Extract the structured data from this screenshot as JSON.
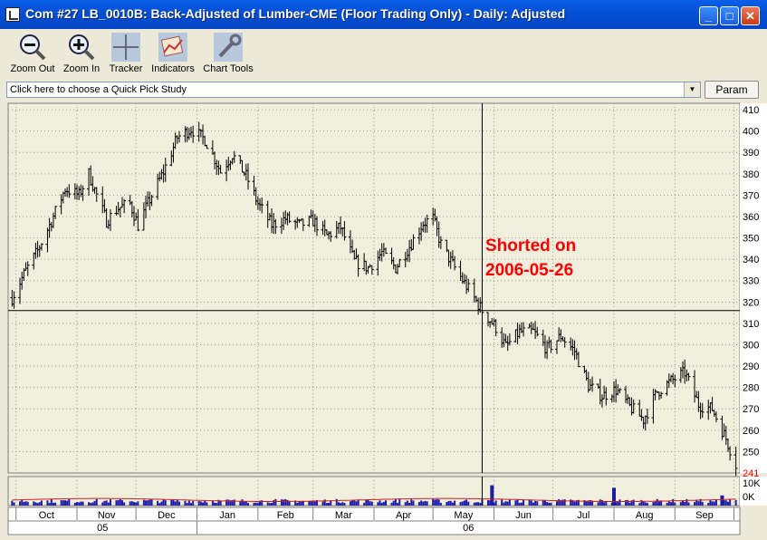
{
  "window": {
    "title": "Com #27 LB_0010B: Back-Adjusted of Lumber-CME (Floor Trading Only) - Daily: Adjusted",
    "minimize_label": "_",
    "maximize_label": "□",
    "close_label": "✕"
  },
  "toolbar": {
    "items": [
      {
        "label": "Zoom Out",
        "icon": "zoom-out-icon"
      },
      {
        "label": "Zoom In",
        "icon": "zoom-in-icon"
      },
      {
        "label": "Tracker",
        "icon": "crosshair-icon"
      },
      {
        "label": "Indicators",
        "icon": "indicators-icon"
      },
      {
        "label": "Chart Tools",
        "icon": "wrench-icon"
      }
    ]
  },
  "study_bar": {
    "quick_pick_text": "Click here to choose a Quick Pick Study",
    "dropdown_glyph": "▼",
    "param_label": "Param"
  },
  "chart_data": {
    "type": "ohlc",
    "ylim": [
      240,
      413
    ],
    "y_ticks": [
      410,
      400,
      390,
      380,
      370,
      360,
      350,
      340,
      330,
      320,
      310,
      300,
      290,
      280,
      270,
      260,
      250
    ],
    "last_price_label": "241",
    "volume_ticks": [
      "10K",
      "0K"
    ],
    "x_months": [
      "Oct",
      "Nov",
      "Dec",
      "Jan",
      "Feb",
      "Mar",
      "Apr",
      "May",
      "Jun",
      "Jul",
      "Aug",
      "Sep"
    ],
    "x_years": [
      "05",
      "06"
    ],
    "annotation": {
      "text_line1": "Shorted on",
      "text_line2": "2006-05-26",
      "color": "#ff0000"
    },
    "short_price": 316,
    "short_date": "2006-05-26",
    "price_path": [
      [
        "2005-09-29",
        322
      ],
      [
        "2005-10-05",
        333
      ],
      [
        "2005-10-12",
        344
      ],
      [
        "2005-10-19",
        358
      ],
      [
        "2005-10-26",
        373
      ],
      [
        "2005-11-02",
        370
      ],
      [
        "2005-11-07",
        380
      ],
      [
        "2005-11-11",
        370
      ],
      [
        "2005-11-16",
        358
      ],
      [
        "2005-11-22",
        364
      ],
      [
        "2005-11-28",
        366
      ],
      [
        "2005-12-02",
        356
      ],
      [
        "2005-12-08",
        368
      ],
      [
        "2005-12-15",
        381
      ],
      [
        "2005-12-22",
        397
      ],
      [
        "2005-12-29",
        401
      ],
      [
        "2006-01-05",
        396
      ],
      [
        "2006-01-09",
        389
      ],
      [
        "2006-01-13",
        381
      ],
      [
        "2006-01-19",
        389
      ],
      [
        "2006-01-26",
        379
      ],
      [
        "2006-02-01",
        366
      ],
      [
        "2006-02-08",
        356
      ],
      [
        "2006-02-15",
        359
      ],
      [
        "2006-02-22",
        356
      ],
      [
        "2006-03-01",
        358
      ],
      [
        "2006-03-08",
        351
      ],
      [
        "2006-03-15",
        355
      ],
      [
        "2006-03-22",
        339
      ],
      [
        "2006-03-29",
        336
      ],
      [
        "2006-04-05",
        343
      ],
      [
        "2006-04-12",
        336
      ],
      [
        "2006-04-19",
        346
      ],
      [
        "2006-04-26",
        357
      ],
      [
        "2006-05-01",
        359
      ],
      [
        "2006-05-05",
        347
      ],
      [
        "2006-05-12",
        336
      ],
      [
        "2006-05-19",
        326
      ],
      [
        "2006-05-26",
        316
      ],
      [
        "2006-06-02",
        308
      ],
      [
        "2006-06-07",
        299
      ],
      [
        "2006-06-14",
        306
      ],
      [
        "2006-06-21",
        306
      ],
      [
        "2006-06-28",
        298
      ],
      [
        "2006-07-05",
        304
      ],
      [
        "2006-07-12",
        297
      ],
      [
        "2006-07-19",
        281
      ],
      [
        "2006-07-26",
        276
      ],
      [
        "2006-08-02",
        279
      ],
      [
        "2006-08-09",
        271
      ],
      [
        "2006-08-16",
        265
      ],
      [
        "2006-08-23",
        278
      ],
      [
        "2006-08-30",
        283
      ],
      [
        "2006-09-06",
        287
      ],
      [
        "2006-09-13",
        272
      ],
      [
        "2006-09-20",
        270
      ],
      [
        "2006-09-27",
        256
      ],
      [
        "2006-10-02",
        244
      ]
    ],
    "volume": {
      "typical": 2,
      "spikes": [
        8,
        7,
        4
      ]
    }
  },
  "colors": {
    "chart_bg": "#f0eedc",
    "bars": "#000000",
    "volume": "#1c1ca8",
    "volume_avg": "#d02020",
    "annotation": "#ff0000",
    "last_price": "#ff0000"
  }
}
